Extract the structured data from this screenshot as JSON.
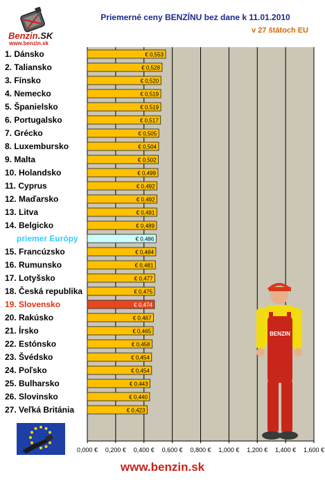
{
  "header": {
    "logo_text_main": "Benzin",
    "logo_text_sk": ".SK",
    "logo_url": "www.benzin.sk",
    "title": "Priemerné ceny BENZÍNU bez dane k 11.01.2010",
    "subtitle": "v 27 štátoch EU"
  },
  "footer": {
    "url": "www.benzin.sk"
  },
  "colors": {
    "bar": "#ffc000",
    "bar_highlight": "#e8461e",
    "bar_average": "#ccffff",
    "plot_bg": "#cbc6b5",
    "label_default": "#000000",
    "label_highlight": "#e03010",
    "label_average": "#33ccff"
  },
  "chart_data": {
    "type": "bar",
    "orientation": "horizontal",
    "title": "Priemerné ceny BENZÍNU bez dane k 11.01.2010",
    "subtitle": "v 27 štátoch EU",
    "xlim": [
      0,
      1.6
    ],
    "x_ticks": [
      "0,000 €",
      "0,200 €",
      "0,400 €",
      "0,600 €",
      "0,800 €",
      "1,000 €",
      "1,200 €",
      "1,400 €",
      "1,600 €"
    ],
    "grid": "vertical",
    "categories": [
      "1. Dánsko",
      "2. Taliansko",
      "3. Fínsko",
      "4. Nemecko",
      "5. Španielsko",
      "6. Portugalsko",
      "7. Grécko",
      "8. Luxembursko",
      "9. Malta",
      "10. Holandsko",
      "11. Cyprus",
      "12. Maďarsko",
      "13. Litva",
      "14. Belgicko",
      "priemer Európy",
      "15. Francúzsko",
      "16. Rumunsko",
      "17. Lotyšsko",
      "18. Česká republika",
      "19. Slovensko",
      "20. Rakúsko",
      "21. Írsko",
      "22. Estónsko",
      "23. Švédsko",
      "24. Poľsko",
      "25. Bulharsko",
      "26. Slovinsko",
      "27. Veľká Británia"
    ],
    "values": [
      0.553,
      0.528,
      0.52,
      0.519,
      0.519,
      0.517,
      0.505,
      0.504,
      0.502,
      0.499,
      0.492,
      0.492,
      0.491,
      0.489,
      0.486,
      0.484,
      0.481,
      0.477,
      0.475,
      0.474,
      0.467,
      0.465,
      0.458,
      0.454,
      0.454,
      0.443,
      0.44,
      0.423
    ],
    "value_labels": [
      "€ 0,553",
      "€ 0,528",
      "€ 0,520",
      "€ 0,519",
      "€ 0,519",
      "€ 0,517",
      "€ 0,505",
      "€ 0,504",
      "€ 0,502",
      "€ 0,499",
      "€ 0,492",
      "€ 0,492",
      "€ 0,491",
      "€ 0,489",
      "€ 0,486",
      "€ 0,484",
      "€ 0,481",
      "€ 0,477",
      "€ 0,475",
      "€ 0,474",
      "€ 0,467",
      "€ 0,465",
      "€ 0,458",
      "€ 0,454",
      "€ 0,454",
      "€ 0,443",
      "€ 0,440",
      "€ 0,423"
    ],
    "highlight": "19. Slovensko",
    "average": "priemer Európy"
  }
}
